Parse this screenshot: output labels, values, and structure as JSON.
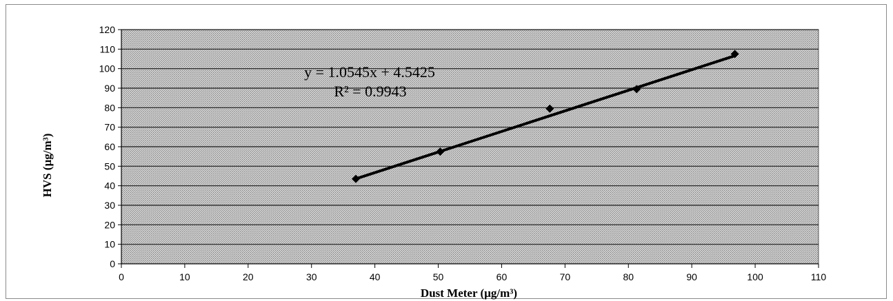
{
  "chart_data": {
    "type": "scatter",
    "title": "",
    "xlabel": "Dust Meter  (µg/m³)",
    "ylabel": "HVS (µg/m³)",
    "xlim": [
      0,
      110
    ],
    "ylim": [
      0,
      120
    ],
    "x_ticks": [
      "0",
      "10",
      "20",
      "30",
      "40",
      "50",
      "60",
      "70",
      "80",
      "90",
      "100",
      "110"
    ],
    "y_ticks": [
      "0",
      "10",
      "20",
      "30",
      "40",
      "50",
      "60",
      "70",
      "80",
      "90",
      "100",
      "110",
      "120"
    ],
    "grid": "horizontal",
    "series": [
      {
        "x": [
          37,
          50.3,
          67.6,
          81.3,
          96.8
        ],
        "y": [
          43.5,
          57.5,
          79.5,
          89.5,
          107.5
        ],
        "marker": "diamond",
        "color": "#000000"
      }
    ],
    "trendline": {
      "slope": 1.0545,
      "intercept": 4.5425,
      "x_range": [
        37,
        96.8
      ],
      "color": "#000000"
    },
    "annotations": {
      "equation": "y = 1.0545x + 4.5425",
      "r_squared": "R² = 0.9943"
    },
    "colors": {
      "plot_background": "#c9c9c9",
      "gridline": "#1a1a1a"
    }
  }
}
